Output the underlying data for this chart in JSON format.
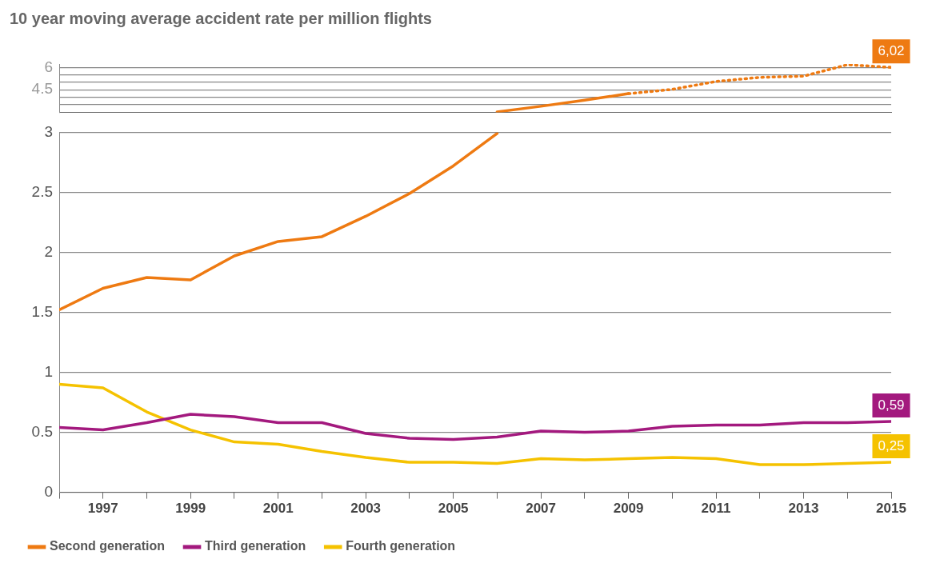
{
  "chart_data": [
    {
      "type": "line",
      "title": "10 year moving average accident rate per million flights",
      "xlim": [
        1996,
        2015
      ],
      "tick_labels": "y",
      "ylim": [
        2.95,
        6.25
      ],
      "yticks": [
        {
          "value": 3.5,
          "label": null
        },
        {
          "value": 4,
          "label": null
        },
        4.5,
        {
          "value": 5,
          "label": null
        },
        {
          "value": 5.5,
          "label": null
        },
        6
      ],
      "grid": "y",
      "marker": "none",
      "series": [
        {
          "color": "#ee7a12",
          "line_style": "solid",
          "x": [
            2006,
            2007,
            2008,
            2009
          ],
          "values": [
            2.99,
            3.37,
            3.78,
            4.23
          ]
        },
        {
          "color": "#ee7a12",
          "line_style": "dotted",
          "x": [
            2009,
            2010,
            2011,
            2012,
            2013,
            2014,
            2015
          ],
          "values": [
            4.23,
            4.52,
            5.06,
            5.34,
            5.42,
            6.2,
            6.02
          ],
          "value_labels": [
            null,
            null,
            null,
            null,
            null,
            null,
            "6,02"
          ]
        }
      ]
    },
    {
      "type": "line",
      "x": [
        1996,
        1997,
        1998,
        1999,
        2000,
        2001,
        2002,
        2003,
        2004,
        2005,
        2006,
        2007,
        2008,
        2009,
        2010,
        2011,
        2012,
        2013,
        2014,
        2015
      ],
      "xlim": [
        1996,
        2015
      ],
      "xticks": [
        {
          "value": 1996,
          "label": null
        },
        1997,
        {
          "value": 1998,
          "label": null
        },
        1999,
        {
          "value": 2000,
          "label": null
        },
        2001,
        {
          "value": 2002,
          "label": null
        },
        2003,
        {
          "value": 2004,
          "label": null
        },
        2005,
        {
          "value": 2006,
          "label": null
        },
        2007,
        {
          "value": 2008,
          "label": null
        },
        2009,
        {
          "value": 2010,
          "label": null
        },
        2011,
        {
          "value": 2012,
          "label": null
        },
        2013,
        {
          "value": 2014,
          "label": null
        },
        2015
      ],
      "ylim": [
        0,
        3
      ],
      "yticks": [
        0,
        0.5,
        1,
        1.5,
        2,
        2.5,
        3
      ],
      "grid": "y",
      "legend": "bottom left",
      "marker": "none",
      "series": [
        {
          "name": "Second generation",
          "color": "#ee7a12",
          "line_style": "solid",
          "x": [
            1996,
            1997,
            1998,
            1999,
            2000,
            2001,
            2002,
            2003,
            2004,
            2005,
            2006
          ],
          "values": [
            1.52,
            1.7,
            1.79,
            1.77,
            1.97,
            2.09,
            2.13,
            2.3,
            2.49,
            2.72,
            2.99
          ]
        },
        {
          "name": "Third generation",
          "color": "#a3197e",
          "line_style": "solid",
          "values": [
            0.54,
            0.52,
            0.58,
            0.65,
            0.63,
            0.58,
            0.58,
            0.49,
            0.45,
            0.44,
            0.46,
            0.51,
            0.5,
            0.51,
            0.55,
            0.56,
            0.56,
            0.58,
            0.58,
            0.59
          ],
          "value_labels": [
            null,
            null,
            null,
            null,
            null,
            null,
            null,
            null,
            null,
            null,
            null,
            null,
            null,
            null,
            null,
            null,
            null,
            null,
            null,
            "0,59"
          ]
        },
        {
          "name": "Fourth generation",
          "color": "#f5c200",
          "line_style": "solid",
          "values": [
            0.9,
            0.87,
            0.67,
            0.52,
            0.42,
            0.4,
            0.34,
            0.29,
            0.25,
            0.25,
            0.24,
            0.28,
            0.27,
            0.28,
            0.29,
            0.28,
            0.23,
            0.23,
            0.24,
            0.25
          ],
          "value_labels": [
            null,
            null,
            null,
            null,
            null,
            null,
            null,
            null,
            null,
            null,
            null,
            null,
            null,
            null,
            null,
            null,
            null,
            null,
            null,
            "0,25"
          ]
        }
      ]
    }
  ]
}
